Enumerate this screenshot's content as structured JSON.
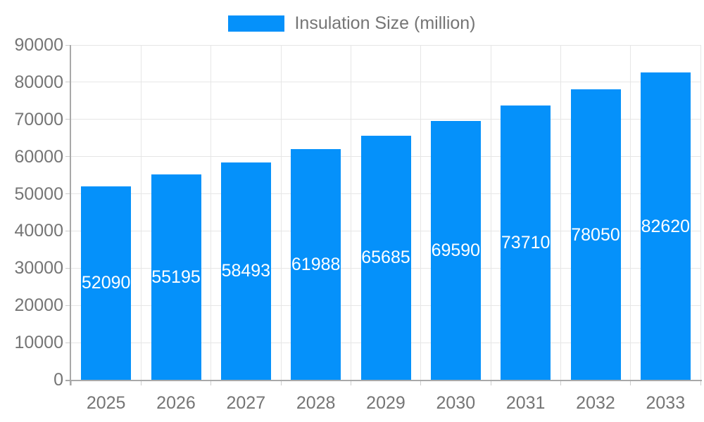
{
  "legend": {
    "label": "Insulation Size (million)",
    "swatch_color": "#0591fa"
  },
  "chart_data": {
    "type": "bar",
    "title": "",
    "xlabel": "",
    "ylabel": "",
    "series_name": "Insulation Size (million)",
    "categories": [
      "2025",
      "2026",
      "2027",
      "2028",
      "2029",
      "2030",
      "2031",
      "2032",
      "2033"
    ],
    "values": [
      52090,
      55195,
      58493,
      61988,
      65685,
      69590,
      73710,
      78050,
      82620
    ],
    "value_labels": [
      "52090",
      "55195",
      "58493",
      "61988",
      "65685",
      "69590",
      "73710",
      "78050",
      "82620"
    ],
    "ylim": [
      0,
      90000
    ],
    "ytick_step": 10000,
    "ytick_labels": [
      "0",
      "10000",
      "20000",
      "30000",
      "40000",
      "50000",
      "60000",
      "70000",
      "80000",
      "90000"
    ],
    "grid": true,
    "legend_position": "top",
    "colors": {
      "bar": "#0591fa",
      "bar_value_text": "#ffffff",
      "axis_text": "#757575",
      "grid_line": "#e6e6e6",
      "axis_line": "#a9a9a9",
      "tick_line": "#cccccc",
      "background": "#ffffff"
    }
  }
}
